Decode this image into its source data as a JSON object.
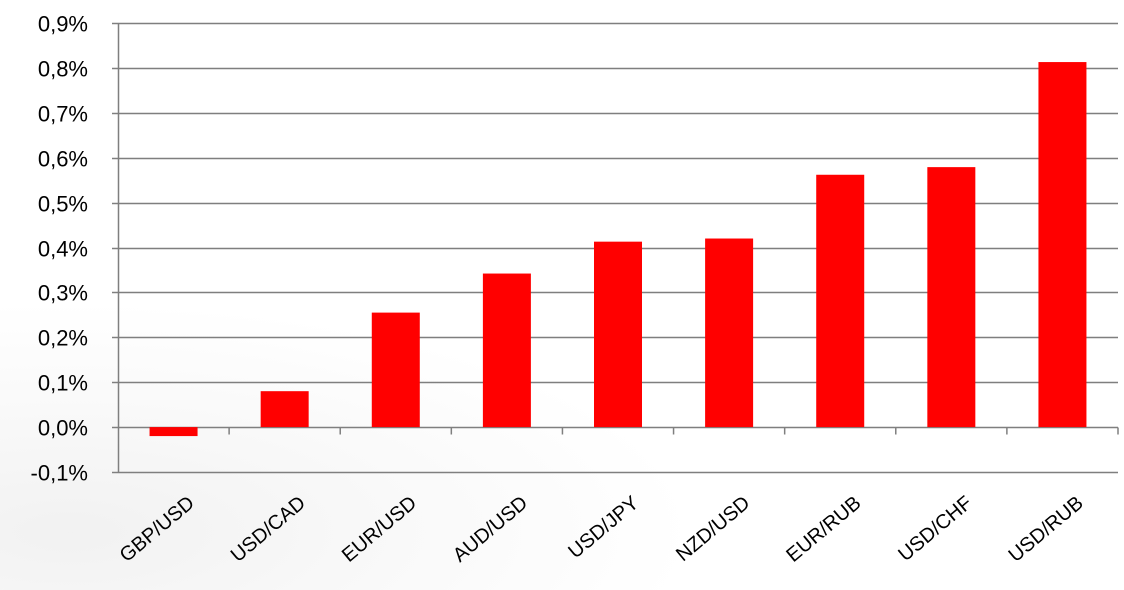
{
  "chart_data": {
    "type": "bar",
    "categories": [
      "GBP/USD",
      "USD/CAD",
      "EUR/USD",
      "AUD/USD",
      "USD/JPY",
      "NZD/USD",
      "EUR/RUB",
      "USD/CHF",
      "USD/RUB"
    ],
    "values": [
      -0.02,
      0.08,
      0.255,
      0.342,
      0.413,
      0.42,
      0.562,
      0.579,
      0.813
    ],
    "ylim": [
      -0.1,
      0.9
    ],
    "yticks": [
      "-0,1%",
      "0,0%",
      "0,1%",
      "0,2%",
      "0,3%",
      "0,4%",
      "0,5%",
      "0,6%",
      "0,7%",
      "0,8%",
      "0,9%"
    ],
    "ytick_values": [
      -0.1,
      0.0,
      0.1,
      0.2,
      0.3,
      0.4,
      0.5,
      0.6,
      0.7,
      0.8,
      0.9
    ],
    "grid": true,
    "bar_color": "#ff0000",
    "grid_color": "#7f7f7f"
  }
}
